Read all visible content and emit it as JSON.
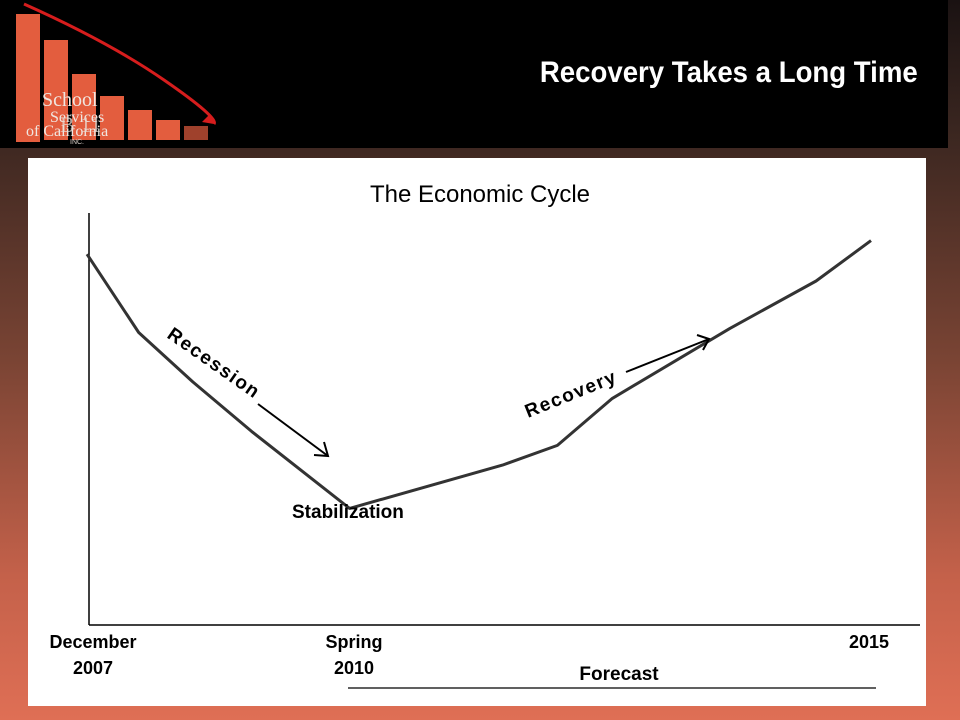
{
  "header": {
    "title": "Recovery Takes a Long Time",
    "logo": {
      "line1": "School",
      "line2": "Services",
      "line3": "of California",
      "suffix": "INC.",
      "overlay": "B 11"
    }
  },
  "colors": {
    "header_bg": "#000000",
    "logo_bars": "#e35d3e",
    "logo_arrow": "#d61d1d",
    "page_gradient_bottom": "#df6f55",
    "line": "#333333"
  },
  "chart_data": {
    "type": "line",
    "title": "The Economic Cycle",
    "x_ticks": [
      {
        "line1": "December",
        "line2": "2007"
      },
      {
        "line1": "Spring",
        "line2": "2010"
      },
      {
        "line1": "2015",
        "line2": ""
      }
    ],
    "series": [
      {
        "values": [
          [
            0.0,
            0.9
          ],
          [
            0.066,
            0.71
          ],
          [
            0.135,
            0.59
          ],
          [
            0.21,
            0.47
          ],
          [
            0.335,
            0.283
          ],
          [
            0.53,
            0.388
          ],
          [
            0.6,
            0.436
          ],
          [
            0.67,
            0.55
          ],
          [
            0.82,
            0.72
          ],
          [
            0.93,
            0.835
          ],
          [
            1.0,
            0.933
          ]
        ]
      }
    ],
    "annotations": {
      "recession": "Recession",
      "recovery": "Recovery",
      "stabilization": "Stabilization",
      "forecast": "Forecast"
    },
    "grid": false,
    "legend": "none"
  }
}
